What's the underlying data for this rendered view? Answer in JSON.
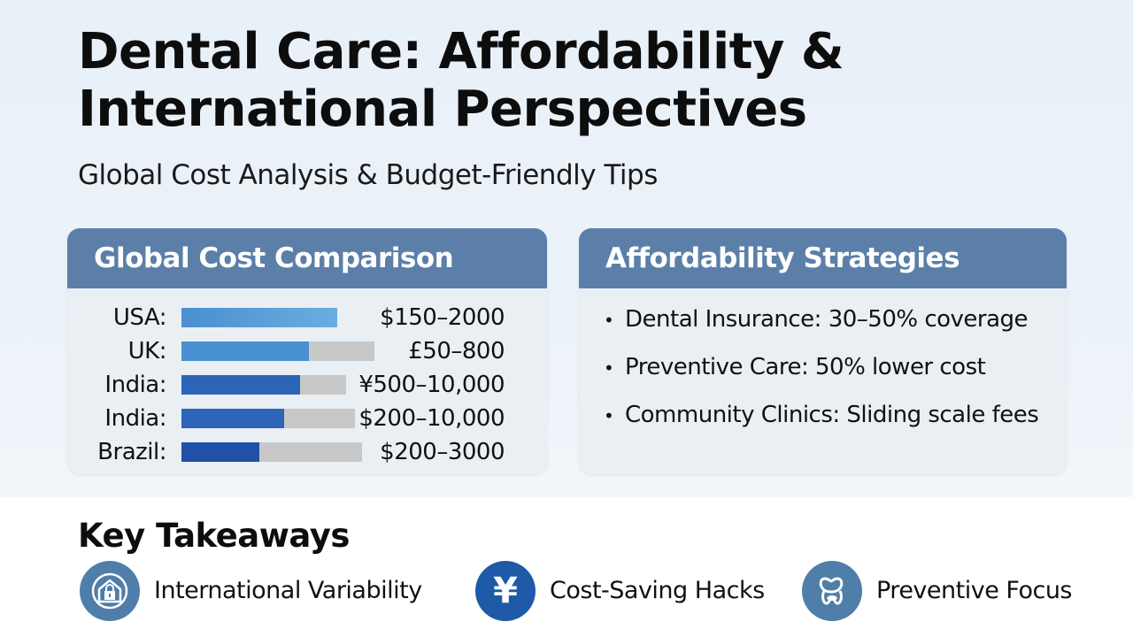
{
  "header": {
    "title": "Dental Care: Affordability & International Perspectives",
    "subtitle": "Global Cost Analysis & Budget-Friendly Tips"
  },
  "cost_panel": {
    "title": "Global Cost Comparison",
    "rows": [
      {
        "country": "USA:",
        "value": "$150–2000",
        "fill": 1.0,
        "track": 1.0,
        "color": "#4a8fd0"
      },
      {
        "country": "UK:",
        "value": "£50–800",
        "fill": 0.66,
        "track": 1.0,
        "color": "#4a8fd0"
      },
      {
        "country": "India:",
        "value": "¥500–10,000",
        "fill": 0.72,
        "track": 1.0,
        "color": "#2c64b8"
      },
      {
        "country": "India:",
        "value": "$200–10,000",
        "fill": 0.59,
        "track": 1.0,
        "color": "#2c64b8"
      },
      {
        "country": "Brazil:",
        "value": "$200–3000",
        "fill": 0.43,
        "track": 1.0,
        "color": "#2050a8"
      }
    ]
  },
  "strategies_panel": {
    "title": "Affordability Strategies",
    "items": [
      "Dental Insurance: 30–50% coverage",
      "Preventive Care: 50% lower cost",
      "Community Clinics: Sliding scale fees"
    ]
  },
  "takeaways": {
    "title": "Key Takeaways",
    "items": [
      {
        "label": "International Variability",
        "icon": "shield-lock-icon",
        "color": "#4f7ea8"
      },
      {
        "label": "Cost-Saving Hacks",
        "icon": "yen-icon",
        "glyph": "¥",
        "color": "#1e5aa8"
      },
      {
        "label": "Preventive Focus",
        "icon": "tooth-icon",
        "color": "#4f7ea8"
      }
    ]
  }
}
